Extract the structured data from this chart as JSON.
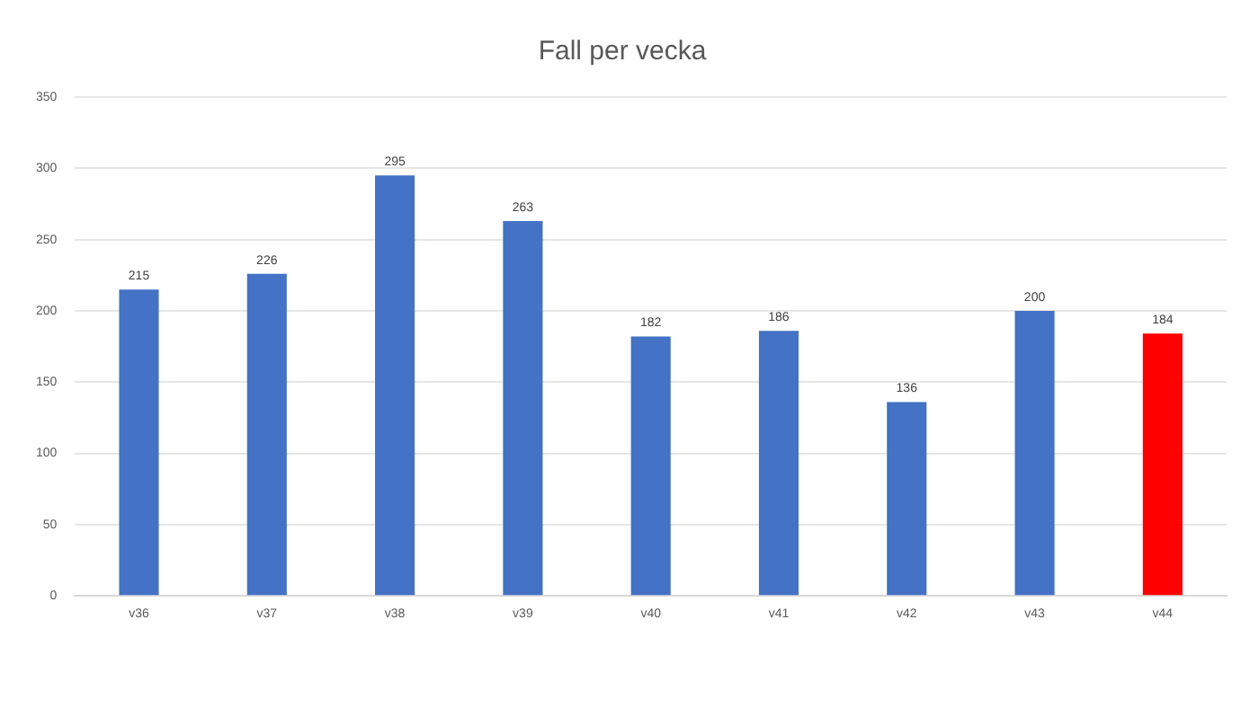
{
  "chart_data": {
    "type": "bar",
    "title": "Fall per vecka",
    "categories": [
      "v36",
      "v37",
      "v38",
      "v39",
      "v40",
      "v41",
      "v42",
      "v43",
      "v44"
    ],
    "values": [
      215,
      226,
      295,
      263,
      182,
      186,
      136,
      200,
      184
    ],
    "colors": [
      "#4472c4",
      "#4472c4",
      "#4472c4",
      "#4472c4",
      "#4472c4",
      "#4472c4",
      "#4472c4",
      "#4472c4",
      "#ff0000"
    ],
    "ylim": [
      0,
      350
    ],
    "yticks": [
      0,
      50,
      100,
      150,
      200,
      250,
      300,
      350
    ],
    "grid": "y",
    "data_labels": true
  }
}
